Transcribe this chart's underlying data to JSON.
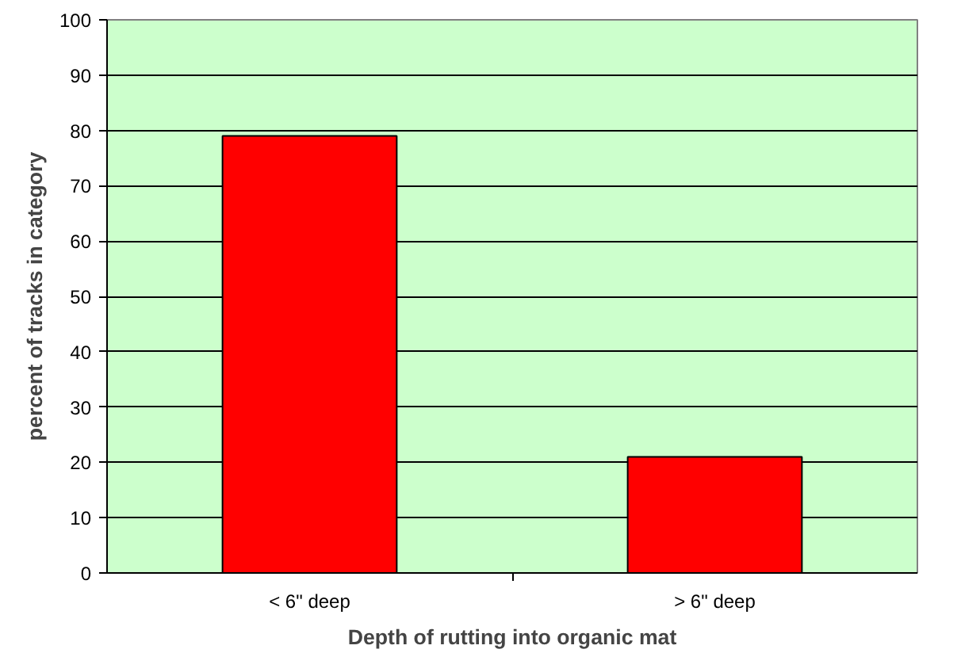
{
  "chart_data": {
    "type": "bar",
    "xlabel": "Depth of rutting into organic mat",
    "ylabel": "percent of tracks in category",
    "categories": [
      "< 6\" deep",
      "> 6\" deep"
    ],
    "values": [
      79,
      21
    ],
    "color": "#ff0000",
    "ylim": [
      0,
      100
    ],
    "yticks": [
      0,
      10,
      20,
      30,
      40,
      50,
      60,
      70,
      80,
      90,
      100
    ],
    "grid": "y"
  }
}
